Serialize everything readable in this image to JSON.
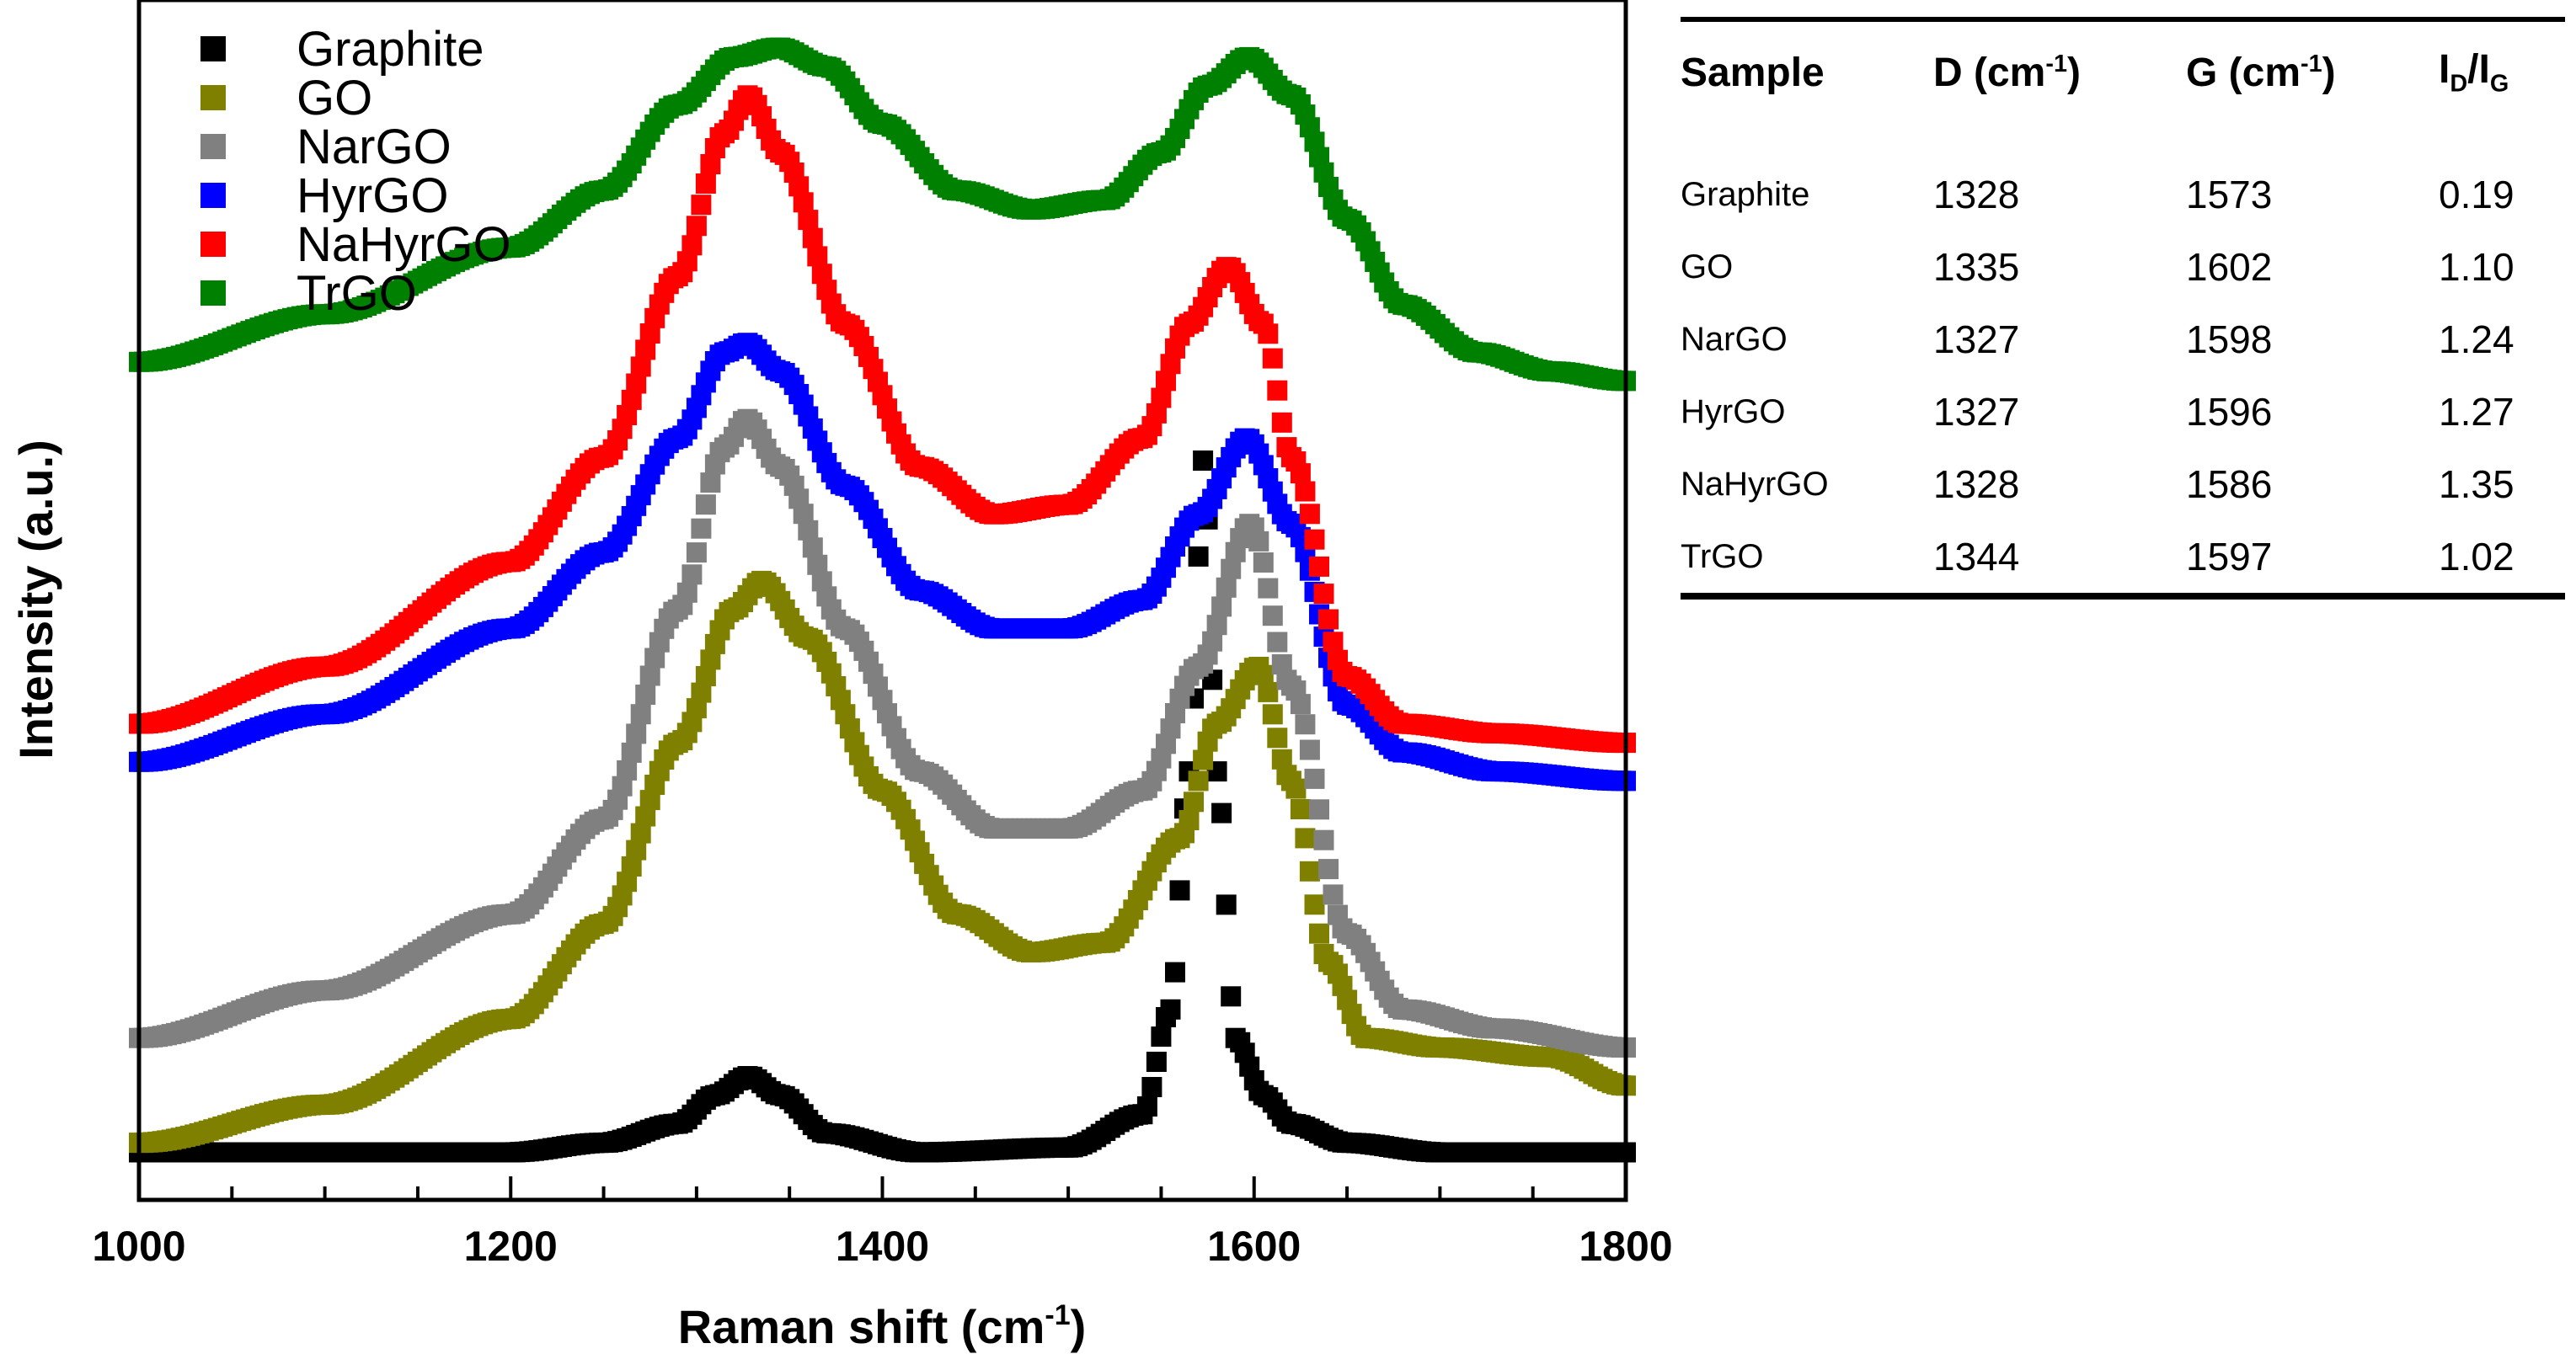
{
  "chart_data": {
    "type": "scatter",
    "title": "",
    "xlabel_main": "Raman shift (cm",
    "xlabel_sup": "-1",
    "xlabel_close": ")",
    "ylabel": "Intensity (a.u.)",
    "xlim": [
      1000,
      1800
    ],
    "xticks": [
      "1000",
      "1200",
      "1400",
      "1600",
      "1800"
    ],
    "legend_position": "top-left",
    "series": [
      {
        "name": "Graphite",
        "color": "#000000",
        "marker": "square",
        "D": 1328,
        "G": 1573,
        "points": [
          [
            1000,
            0.05
          ],
          [
            1100,
            0.05
          ],
          [
            1200,
            0.05
          ],
          [
            1250,
            0.06
          ],
          [
            1290,
            0.08
          ],
          [
            1310,
            0.11
          ],
          [
            1328,
            0.13
          ],
          [
            1345,
            0.11
          ],
          [
            1370,
            0.07
          ],
          [
            1420,
            0.05
          ],
          [
            1500,
            0.055
          ],
          [
            1540,
            0.09
          ],
          [
            1555,
            0.2
          ],
          [
            1565,
            0.45
          ],
          [
            1573,
            0.78
          ],
          [
            1580,
            0.45
          ],
          [
            1590,
            0.17
          ],
          [
            1605,
            0.11
          ],
          [
            1620,
            0.08
          ],
          [
            1650,
            0.06
          ],
          [
            1700,
            0.05
          ],
          [
            1800,
            0.05
          ]
        ]
      },
      {
        "name": "GO",
        "color": "#808000",
        "marker": "square",
        "D": 1335,
        "G": 1602,
        "points": [
          [
            1000,
            0.06
          ],
          [
            1100,
            0.1
          ],
          [
            1200,
            0.19
          ],
          [
            1250,
            0.29
          ],
          [
            1290,
            0.48
          ],
          [
            1320,
            0.62
          ],
          [
            1335,
            0.65
          ],
          [
            1360,
            0.59
          ],
          [
            1400,
            0.43
          ],
          [
            1440,
            0.3
          ],
          [
            1480,
            0.26
          ],
          [
            1520,
            0.27
          ],
          [
            1560,
            0.38
          ],
          [
            1580,
            0.5
          ],
          [
            1602,
            0.56
          ],
          [
            1620,
            0.44
          ],
          [
            1640,
            0.25
          ],
          [
            1660,
            0.17
          ],
          [
            1700,
            0.16
          ],
          [
            1760,
            0.15
          ],
          [
            1800,
            0.12
          ]
        ]
      },
      {
        "name": "NarGO",
        "color": "#808080",
        "marker": "square",
        "D": 1327,
        "G": 1598,
        "points": [
          [
            1000,
            0.17
          ],
          [
            1100,
            0.22
          ],
          [
            1200,
            0.3
          ],
          [
            1250,
            0.4
          ],
          [
            1290,
            0.62
          ],
          [
            1315,
            0.79
          ],
          [
            1327,
            0.82
          ],
          [
            1345,
            0.77
          ],
          [
            1380,
            0.6
          ],
          [
            1420,
            0.45
          ],
          [
            1460,
            0.39
          ],
          [
            1500,
            0.39
          ],
          [
            1540,
            0.43
          ],
          [
            1570,
            0.56
          ],
          [
            1598,
            0.71
          ],
          [
            1620,
            0.54
          ],
          [
            1650,
            0.28
          ],
          [
            1680,
            0.2
          ],
          [
            1730,
            0.18
          ],
          [
            1800,
            0.16
          ]
        ]
      },
      {
        "name": "HyrGO",
        "color": "#0000ff",
        "marker": "square",
        "D": 1327,
        "G": 1596,
        "points": [
          [
            1000,
            0.46
          ],
          [
            1100,
            0.51
          ],
          [
            1200,
            0.6
          ],
          [
            1250,
            0.68
          ],
          [
            1290,
            0.8
          ],
          [
            1315,
            0.89
          ],
          [
            1327,
            0.9
          ],
          [
            1345,
            0.87
          ],
          [
            1380,
            0.75
          ],
          [
            1420,
            0.64
          ],
          [
            1460,
            0.6
          ],
          [
            1500,
            0.6
          ],
          [
            1540,
            0.63
          ],
          [
            1570,
            0.72
          ],
          [
            1596,
            0.8
          ],
          [
            1620,
            0.71
          ],
          [
            1650,
            0.52
          ],
          [
            1680,
            0.47
          ],
          [
            1730,
            0.45
          ],
          [
            1800,
            0.44
          ]
        ]
      },
      {
        "name": "NaHyrGO",
        "color": "#ff0000",
        "marker": "square",
        "D": 1328,
        "G": 1586,
        "points": [
          [
            1000,
            0.5
          ],
          [
            1100,
            0.56
          ],
          [
            1200,
            0.67
          ],
          [
            1250,
            0.78
          ],
          [
            1290,
            0.97
          ],
          [
            1315,
            1.12
          ],
          [
            1328,
            1.16
          ],
          [
            1345,
            1.1
          ],
          [
            1380,
            0.92
          ],
          [
            1420,
            0.77
          ],
          [
            1460,
            0.72
          ],
          [
            1500,
            0.73
          ],
          [
            1540,
            0.8
          ],
          [
            1565,
            0.92
          ],
          [
            1586,
            0.98
          ],
          [
            1605,
            0.92
          ],
          [
            1620,
            0.78
          ],
          [
            1650,
            0.55
          ],
          [
            1680,
            0.5
          ],
          [
            1730,
            0.49
          ],
          [
            1800,
            0.48
          ]
        ]
      },
      {
        "name": "TrGO",
        "color": "#008000",
        "marker": "square",
        "D": 1344,
        "G": 1597,
        "points": [
          [
            1000,
            0.88
          ],
          [
            1100,
            0.93
          ],
          [
            1200,
            1.0
          ],
          [
            1250,
            1.06
          ],
          [
            1290,
            1.15
          ],
          [
            1320,
            1.2
          ],
          [
            1344,
            1.21
          ],
          [
            1370,
            1.19
          ],
          [
            1400,
            1.13
          ],
          [
            1440,
            1.06
          ],
          [
            1480,
            1.04
          ],
          [
            1520,
            1.05
          ],
          [
            1550,
            1.1
          ],
          [
            1575,
            1.17
          ],
          [
            1597,
            1.2
          ],
          [
            1620,
            1.16
          ],
          [
            1650,
            1.03
          ],
          [
            1680,
            0.94
          ],
          [
            1720,
            0.89
          ],
          [
            1760,
            0.87
          ],
          [
            1800,
            0.86
          ]
        ]
      }
    ]
  },
  "table": {
    "headers": {
      "sample": "Sample",
      "d_main": "D (cm",
      "d_sup": "-1",
      "d_close": ")",
      "g_main": "G (cm",
      "g_sup": "-1",
      "g_close": ")",
      "ratio_i1": "I",
      "ratio_sub1": "D",
      "ratio_slash": "/",
      "ratio_i2": "I",
      "ratio_sub2": "G"
    },
    "rows": [
      {
        "sample": "Graphite",
        "d": "1328",
        "g": "1573",
        "ratio": "0.19"
      },
      {
        "sample": "GO",
        "d": "1335",
        "g": "1602",
        "ratio": "1.10"
      },
      {
        "sample": "NarGO",
        "d": "1327",
        "g": "1598",
        "ratio": "1.24"
      },
      {
        "sample": "HyrGO",
        "d": "1327",
        "g": "1596",
        "ratio": "1.27"
      },
      {
        "sample": "NaHyrGO",
        "d": "1328",
        "g": "1586",
        "ratio": "1.35"
      },
      {
        "sample": "TrGO",
        "d": "1344",
        "g": "1597",
        "ratio": "1.02"
      }
    ]
  }
}
